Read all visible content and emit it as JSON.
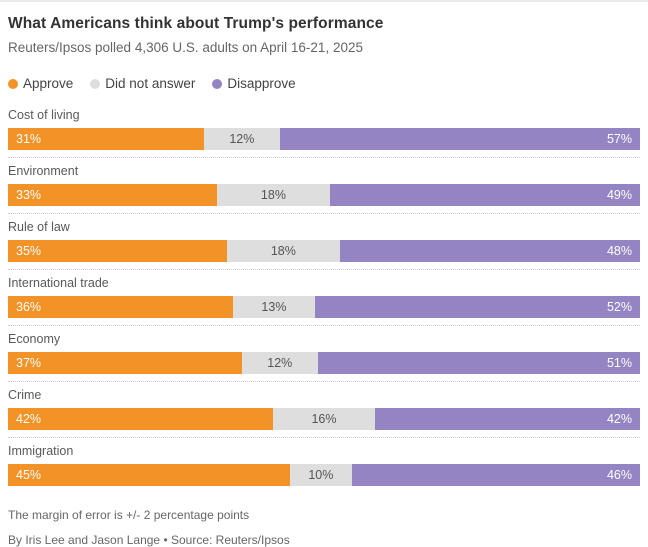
{
  "header": {
    "title": "What Americans think about Trump's performance",
    "subtitle": "Reuters/Ipsos polled 4,306 U.S. adults on April 16-21, 2025"
  },
  "chart_data": {
    "type": "bar",
    "orientation": "horizontal",
    "stacked": true,
    "title": "What Americans think about Trump's performance",
    "subtitle": "Reuters/Ipsos polled 4,306 U.S. adults on April 16-21, 2025",
    "categories": [
      "Cost of living",
      "Environment",
      "Rule of law",
      "International trade",
      "Economy",
      "Crime",
      "Immigration"
    ],
    "series": [
      {
        "name": "Approve",
        "color": "#F39227",
        "values": [
          31,
          33,
          35,
          36,
          37,
          42,
          45
        ]
      },
      {
        "name": "Did not answer",
        "color": "#DEDEDE",
        "values": [
          12,
          18,
          18,
          13,
          12,
          16,
          10
        ]
      },
      {
        "name": "Disapprove",
        "color": "#9584C4",
        "values": [
          57,
          49,
          48,
          52,
          51,
          42,
          46
        ]
      }
    ],
    "value_suffix": "%",
    "xlim": [
      0,
      100
    ],
    "grid": false,
    "legend_position": "top",
    "value_labels": "inside"
  },
  "footer": {
    "note": "The margin of error is +/- 2 percentage points",
    "byline": "By Iris Lee and Jason Lange • Source: Reuters/Ipsos"
  }
}
